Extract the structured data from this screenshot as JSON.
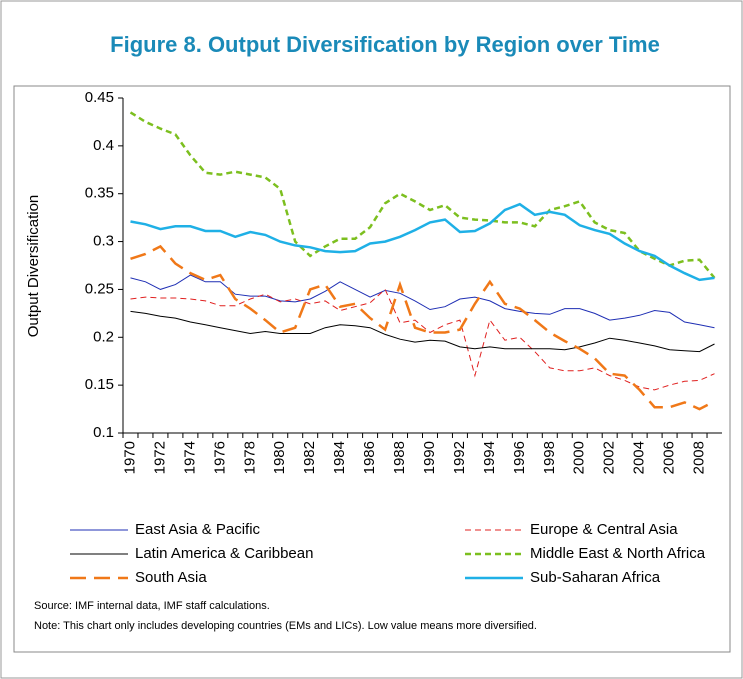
{
  "chart_data": {
    "type": "line",
    "title": "Figure 8. Output Diversification by Region over Time",
    "y_label": "Output Diversification",
    "categories": [
      "1970",
      null,
      "1972",
      null,
      "1974",
      null,
      "1976",
      null,
      "1978",
      null,
      "1980",
      null,
      "1982",
      null,
      "1984",
      null,
      "1986",
      null,
      "1988",
      null,
      "1990",
      null,
      "1992",
      null,
      "1994",
      null,
      "1996",
      null,
      "1998",
      null,
      "2000",
      null,
      "2002",
      null,
      "2004",
      null,
      "2006",
      null,
      "2008",
      null
    ],
    "ylim": [
      0.1,
      0.45
    ],
    "yticks": [
      0.1,
      0.15,
      0.2,
      0.25,
      0.3,
      0.35,
      0.4,
      0.45
    ],
    "legend": "bottom",
    "series": [
      {
        "name": "East Asia & Pacific",
        "color": "#1f2fb4",
        "style": "solid",
        "width": 1,
        "values": [
          0.262,
          0.258,
          0.25,
          0.255,
          0.265,
          0.258,
          0.258,
          0.245,
          0.243,
          0.243,
          0.238,
          0.237,
          0.24,
          0.248,
          0.258,
          0.25,
          0.242,
          0.249,
          0.246,
          0.238,
          0.229,
          0.232,
          0.24,
          0.242,
          0.238,
          0.23,
          0.227,
          0.225,
          0.224,
          0.23,
          0.23,
          0.225,
          0.218,
          0.22,
          0.223,
          0.228,
          0.226,
          0.216,
          0.213,
          0.21
        ]
      },
      {
        "name": "Europe & Central Asia",
        "color": "#e0201f",
        "style": "dash",
        "width": 1,
        "values": [
          0.24,
          0.242,
          0.241,
          0.241,
          0.24,
          0.238,
          0.233,
          0.233,
          0.24,
          0.245,
          0.237,
          0.24,
          0.235,
          0.238,
          0.228,
          0.232,
          0.236,
          0.25,
          0.215,
          0.218,
          0.205,
          0.213,
          0.218,
          0.16,
          0.218,
          0.197,
          0.2,
          0.185,
          0.168,
          0.165,
          0.165,
          0.168,
          0.16,
          0.155,
          0.148,
          0.145,
          0.15,
          0.154,
          0.155,
          0.162
        ]
      },
      {
        "name": "Latin America & Caribbean",
        "color": "#000000",
        "style": "solid",
        "width": 1,
        "values": [
          0.227,
          0.225,
          0.222,
          0.22,
          0.216,
          0.213,
          0.21,
          0.207,
          0.204,
          0.206,
          0.204,
          0.204,
          0.204,
          0.21,
          0.213,
          0.212,
          0.21,
          0.203,
          0.198,
          0.195,
          0.197,
          0.196,
          0.19,
          0.188,
          0.19,
          0.188,
          0.188,
          0.188,
          0.188,
          0.187,
          0.19,
          0.194,
          0.199,
          0.197,
          0.194,
          0.191,
          0.187,
          0.186,
          0.185,
          0.193
        ]
      },
      {
        "name": "Middle East & North Africa",
        "color": "#7cbf1f",
        "style": "dash",
        "width": 2.5,
        "values": [
          0.435,
          0.425,
          0.418,
          0.412,
          0.39,
          0.372,
          0.37,
          0.373,
          0.37,
          0.367,
          0.355,
          0.3,
          0.285,
          0.295,
          0.303,
          0.303,
          0.315,
          0.34,
          0.35,
          0.342,
          0.333,
          0.338,
          0.325,
          0.323,
          0.322,
          0.32,
          0.32,
          0.316,
          0.333,
          0.337,
          0.342,
          0.32,
          0.312,
          0.309,
          0.29,
          0.282,
          0.275,
          0.28,
          0.281,
          0.262
        ]
      },
      {
        "name": "South Asia",
        "color": "#f07818",
        "style": "long-dash",
        "width": 2.5,
        "values": [
          0.282,
          0.287,
          0.295,
          0.277,
          0.267,
          0.26,
          0.265,
          0.24,
          0.23,
          0.218,
          0.205,
          0.21,
          0.25,
          0.255,
          0.232,
          0.235,
          0.22,
          0.208,
          0.255,
          0.21,
          0.205,
          0.205,
          0.208,
          0.235,
          0.258,
          0.235,
          0.23,
          0.218,
          0.205,
          0.196,
          0.188,
          0.178,
          0.162,
          0.16,
          0.145,
          0.127,
          0.127,
          0.132,
          0.125,
          0.133
        ]
      },
      {
        "name": "Sub-Saharan Africa",
        "color": "#1fb0e6",
        "style": "solid",
        "width": 2.5,
        "values": [
          0.321,
          0.318,
          0.313,
          0.316,
          0.316,
          0.311,
          0.311,
          0.305,
          0.31,
          0.307,
          0.3,
          0.296,
          0.294,
          0.29,
          0.289,
          0.29,
          0.298,
          0.3,
          0.305,
          0.312,
          0.32,
          0.323,
          0.31,
          0.311,
          0.319,
          0.333,
          0.339,
          0.328,
          0.331,
          0.328,
          0.317,
          0.312,
          0.308,
          0.298,
          0.29,
          0.285,
          0.275,
          0.267,
          0.26,
          0.262
        ]
      }
    ],
    "source": "Source: IMF internal data, IMF staff calculations.",
    "note": "Note: This chart only includes developing countries (EMs and LICs). Low value means more diversified."
  }
}
